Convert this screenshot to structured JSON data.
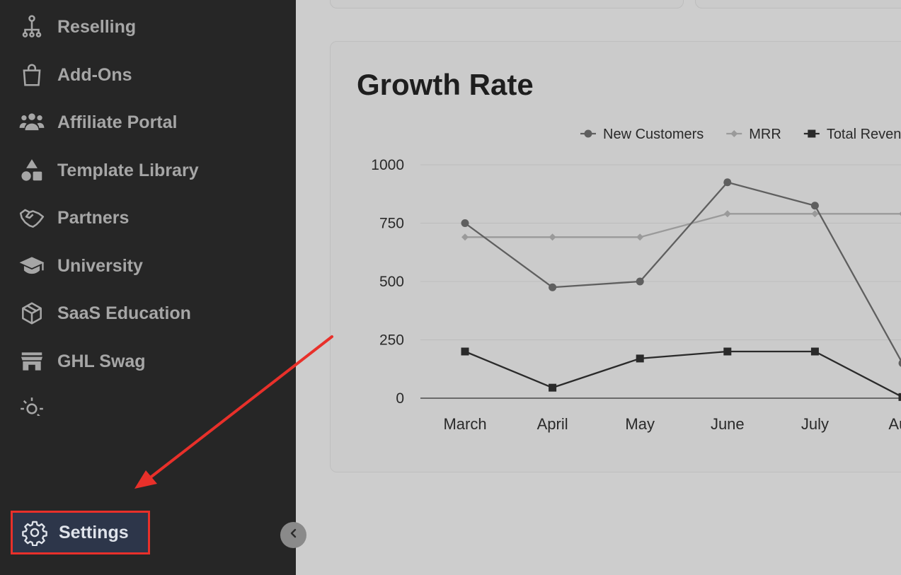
{
  "sidebar": {
    "items": [
      {
        "label": "Reselling",
        "icon": "reselling-icon"
      },
      {
        "label": "Add-Ons",
        "icon": "shopping-bag-icon"
      },
      {
        "label": "Affiliate Portal",
        "icon": "users-icon"
      },
      {
        "label": "Template Library",
        "icon": "shapes-icon"
      },
      {
        "label": "Partners",
        "icon": "handshake-icon"
      },
      {
        "label": "University",
        "icon": "graduation-cap-icon"
      },
      {
        "label": "SaaS Education",
        "icon": "box-icon"
      },
      {
        "label": "GHL Swag",
        "icon": "store-icon"
      }
    ],
    "settings_label": "Settings",
    "settings_icon": "gear-icon",
    "collapse_icon": "chevron-left-icon"
  },
  "main": {
    "chart_title": "Growth Rate"
  },
  "colors": {
    "annotation": "#e8302a",
    "new_customers": "#5f5f5f",
    "mrr": "#9a9a9a",
    "total_revenue": "#2a2a2a"
  },
  "chart_data": {
    "type": "line",
    "title": "Growth Rate",
    "categories": [
      "March",
      "April",
      "May",
      "June",
      "July",
      "Aug"
    ],
    "ylim": [
      0,
      1000
    ],
    "yticks": [
      0,
      250,
      500,
      750,
      1000
    ],
    "grid": true,
    "legend_position": "top-right",
    "series": [
      {
        "name": "New Customers",
        "marker": "circle",
        "values": [
          750,
          475,
          500,
          925,
          825,
          150
        ]
      },
      {
        "name": "MRR",
        "marker": "diamond",
        "values": [
          690,
          690,
          690,
          790,
          790,
          790
        ]
      },
      {
        "name": "Total Revenue",
        "marker": "square",
        "values": [
          200,
          45,
          170,
          200,
          200,
          5
        ]
      }
    ]
  }
}
